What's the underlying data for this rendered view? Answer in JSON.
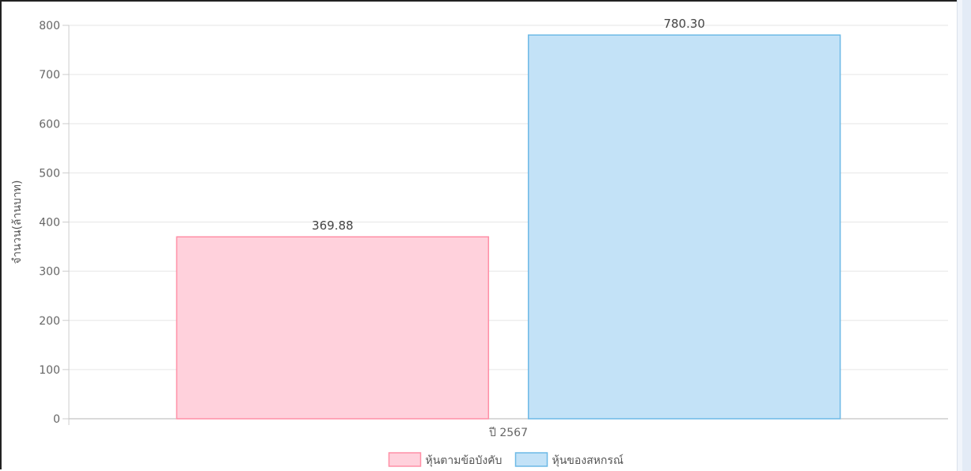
{
  "chart_data": {
    "type": "bar",
    "categories": [
      "ปี 2567"
    ],
    "ylabel": "จำนวน(ล้านบาท)",
    "ylim": [
      0,
      800
    ],
    "yticks": [
      0,
      100,
      200,
      300,
      400,
      500,
      600,
      700,
      800
    ],
    "grid": true,
    "legend_position": "bottom",
    "series": [
      {
        "name": "หุ้นตามข้อบังคับ",
        "values": [
          369.88
        ],
        "value_labels": [
          "369.88"
        ],
        "fill": "#ffd1dc",
        "stroke": "#ff8fa6"
      },
      {
        "name": "หุ้นของสหกรณ์",
        "values": [
          780.3
        ],
        "value_labels": [
          "780.30"
        ],
        "fill": "#c3e2f7",
        "stroke": "#6db9e6"
      }
    ]
  }
}
